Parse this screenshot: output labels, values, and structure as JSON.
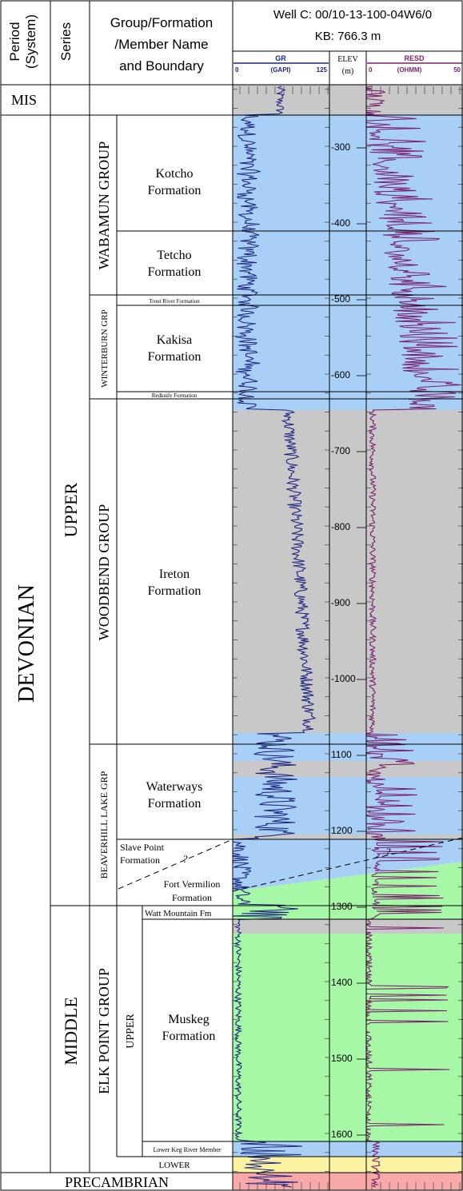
{
  "header": {
    "period": [
      "Period",
      "(System)"
    ],
    "series": "Series",
    "group_lines": [
      "Group/Formation",
      "/Member Name",
      "and Boundary"
    ],
    "well_lines": [
      "Well C: 00/10-13-100-04W6/0",
      "KB: 766.3 m"
    ]
  },
  "tracks": {
    "gr": {
      "name": "GR",
      "unit": "(GAPI)",
      "min": "0",
      "max": "125",
      "color": "#1a237e"
    },
    "elev": {
      "name": "ELEV",
      "unit": "(m)"
    },
    "resd": {
      "name": "RESD",
      "unit": "(OHMM)",
      "min": "0",
      "max": "50",
      "color": "#7b1f6e"
    }
  },
  "depth_ticks": [
    {
      "label": "-300",
      "value": 300
    },
    {
      "label": "-400",
      "value": 400
    },
    {
      "label": "-500",
      "value": 500
    },
    {
      "label": "-600",
      "value": 600
    },
    {
      "label": "-700",
      "value": 700
    },
    {
      "label": "-800",
      "value": 800
    },
    {
      "label": "-900",
      "value": 900
    },
    {
      "label": "-1000",
      "value": 1000
    },
    {
      "label": "1100",
      "value": 1100
    },
    {
      "label": "1200",
      "value": 1200
    },
    {
      "label": "1300",
      "value": 1300
    },
    {
      "label": "1400",
      "value": 1400
    },
    {
      "label": "1500",
      "value": 1500
    },
    {
      "label": "1600",
      "value": 1600
    }
  ],
  "stratigraphy": {
    "top_row": "MIS",
    "bottom_row": "PRECAMBRIAN",
    "period": "DEVONIAN",
    "series": [
      "UPPER",
      "MIDDLE"
    ],
    "groups": [
      "WABAMUN GROUP",
      "WINTERBURN GRP",
      "WOODBEND GROUP",
      "BEAVERHILL LAKE GRP",
      "ELK POINT GROUP"
    ],
    "elk_point_subdivisions": [
      "UPPER",
      "LOWER"
    ],
    "formations": {
      "kotcho": [
        "Kotcho",
        "Formation"
      ],
      "tetcho": [
        "Tetcho",
        "Formation"
      ],
      "trout_river": "Trout River Formation",
      "kakisa": [
        "Kakisa",
        "Formation"
      ],
      "redknife": "Redknife Formation",
      "ireton": [
        "Ireton",
        "Formation"
      ],
      "waterways": [
        "Waterways",
        "Formation"
      ],
      "slave_point": [
        "Slave Point",
        "Formation"
      ],
      "fort_vermilion": [
        "Fort Vermilion",
        "Formation"
      ],
      "watt_mountain": "Watt Mountain Fm",
      "muskeg": [
        "Muskeg",
        "Formation"
      ],
      "lower_keg_river": "Lower Keg River Member"
    },
    "question_mark": "?"
  },
  "colors": {
    "shale": "#c8c8c8",
    "limestone": "#a8cff5",
    "dolomite": "#a6f7a6",
    "evaporite": "#fbf3a2",
    "basement": "#f7a8a8"
  }
}
